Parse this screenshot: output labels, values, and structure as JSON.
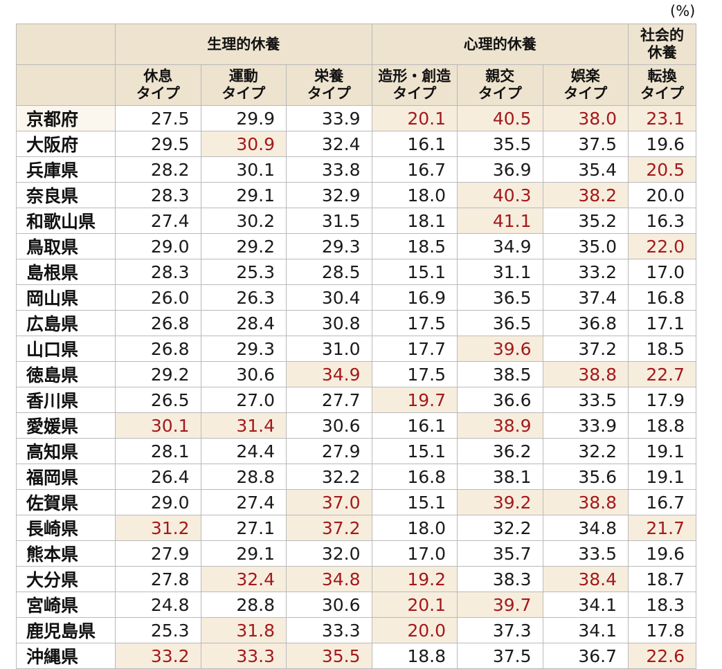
{
  "unit_label": "(%)",
  "colors": {
    "header_bg": "#ede3cf",
    "highlight_bg": "#f7eddd",
    "highlight_text": "#a3191c",
    "normal_text": "#1a1a1a"
  },
  "chart_data": {
    "type": "table",
    "groups": [
      {
        "label": "生理的休養",
        "span": 3
      },
      {
        "label": "心理的休養",
        "span": 3
      },
      {
        "label": "社会的\n休養",
        "span": 1
      }
    ],
    "columns": [
      "休息\nタイプ",
      "運動\nタイプ",
      "栄養\nタイプ",
      "造形・創造\nタイプ",
      "親交\nタイプ",
      "娯楽\nタイプ",
      "転換\nタイプ"
    ],
    "rows": [
      {
        "pref": "京都府",
        "values": [
          "27.5",
          "29.9",
          "33.9",
          "20.1",
          "40.5",
          "38.0",
          "23.1"
        ],
        "highlight": [
          false,
          false,
          false,
          true,
          true,
          true,
          true
        ]
      },
      {
        "pref": "大阪府",
        "values": [
          "29.5",
          "30.9",
          "32.4",
          "16.1",
          "35.5",
          "37.5",
          "19.6"
        ],
        "highlight": [
          false,
          true,
          false,
          false,
          false,
          false,
          false
        ]
      },
      {
        "pref": "兵庫県",
        "values": [
          "28.2",
          "30.1",
          "33.8",
          "16.7",
          "36.9",
          "35.4",
          "20.5"
        ],
        "highlight": [
          false,
          false,
          false,
          false,
          false,
          false,
          true
        ]
      },
      {
        "pref": "奈良県",
        "values": [
          "28.3",
          "29.1",
          "32.9",
          "18.0",
          "40.3",
          "38.2",
          "20.0"
        ],
        "highlight": [
          false,
          false,
          false,
          false,
          true,
          true,
          false
        ]
      },
      {
        "pref": "和歌山県",
        "values": [
          "27.4",
          "30.2",
          "31.5",
          "18.1",
          "41.1",
          "35.2",
          "16.3"
        ],
        "highlight": [
          false,
          false,
          false,
          false,
          true,
          false,
          false
        ]
      },
      {
        "pref": "鳥取県",
        "values": [
          "29.0",
          "29.2",
          "29.3",
          "18.5",
          "34.9",
          "35.0",
          "22.0"
        ],
        "highlight": [
          false,
          false,
          false,
          false,
          false,
          false,
          true
        ]
      },
      {
        "pref": "島根県",
        "values": [
          "28.3",
          "25.3",
          "28.5",
          "15.1",
          "31.1",
          "33.2",
          "17.0"
        ],
        "highlight": [
          false,
          false,
          false,
          false,
          false,
          false,
          false
        ]
      },
      {
        "pref": "岡山県",
        "values": [
          "26.0",
          "26.3",
          "30.4",
          "16.9",
          "36.5",
          "37.4",
          "16.8"
        ],
        "highlight": [
          false,
          false,
          false,
          false,
          false,
          false,
          false
        ]
      },
      {
        "pref": "広島県",
        "values": [
          "26.8",
          "28.4",
          "30.8",
          "17.5",
          "36.5",
          "36.8",
          "17.1"
        ],
        "highlight": [
          false,
          false,
          false,
          false,
          false,
          false,
          false
        ]
      },
      {
        "pref": "山口県",
        "values": [
          "26.8",
          "29.3",
          "31.0",
          "17.7",
          "39.6",
          "37.2",
          "18.5"
        ],
        "highlight": [
          false,
          false,
          false,
          false,
          true,
          false,
          false
        ]
      },
      {
        "pref": "徳島県",
        "values": [
          "29.2",
          "30.6",
          "34.9",
          "17.5",
          "38.5",
          "38.8",
          "22.7"
        ],
        "highlight": [
          false,
          false,
          true,
          false,
          false,
          true,
          true
        ]
      },
      {
        "pref": "香川県",
        "values": [
          "26.5",
          "27.0",
          "27.7",
          "19.7",
          "36.6",
          "33.5",
          "17.9"
        ],
        "highlight": [
          false,
          false,
          false,
          true,
          false,
          false,
          false
        ]
      },
      {
        "pref": "愛媛県",
        "values": [
          "30.1",
          "31.4",
          "30.6",
          "16.1",
          "38.9",
          "33.9",
          "18.8"
        ],
        "highlight": [
          true,
          true,
          false,
          false,
          true,
          false,
          false
        ]
      },
      {
        "pref": "高知県",
        "values": [
          "28.1",
          "24.4",
          "27.9",
          "15.1",
          "36.2",
          "32.2",
          "19.1"
        ],
        "highlight": [
          false,
          false,
          false,
          false,
          false,
          false,
          false
        ]
      },
      {
        "pref": "福岡県",
        "values": [
          "26.4",
          "28.8",
          "32.2",
          "16.8",
          "38.1",
          "35.6",
          "19.1"
        ],
        "highlight": [
          false,
          false,
          false,
          false,
          false,
          false,
          false
        ]
      },
      {
        "pref": "佐賀県",
        "values": [
          "29.0",
          "27.4",
          "37.0",
          "15.1",
          "39.2",
          "38.8",
          "16.7"
        ],
        "highlight": [
          false,
          false,
          true,
          false,
          true,
          true,
          false
        ]
      },
      {
        "pref": "長崎県",
        "values": [
          "31.2",
          "27.1",
          "37.2",
          "18.0",
          "32.2",
          "34.8",
          "21.7"
        ],
        "highlight": [
          true,
          false,
          true,
          false,
          false,
          false,
          true
        ]
      },
      {
        "pref": "熊本県",
        "values": [
          "27.9",
          "29.1",
          "32.0",
          "17.0",
          "35.7",
          "33.5",
          "19.6"
        ],
        "highlight": [
          false,
          false,
          false,
          false,
          false,
          false,
          false
        ]
      },
      {
        "pref": "大分県",
        "values": [
          "27.8",
          "32.4",
          "34.8",
          "19.2",
          "38.3",
          "38.4",
          "18.7"
        ],
        "highlight": [
          false,
          true,
          true,
          true,
          false,
          true,
          false
        ]
      },
      {
        "pref": "宮崎県",
        "values": [
          "24.8",
          "28.8",
          "30.6",
          "20.1",
          "39.7",
          "34.1",
          "18.3"
        ],
        "highlight": [
          false,
          false,
          false,
          true,
          true,
          false,
          false
        ]
      },
      {
        "pref": "鹿児島県",
        "values": [
          "25.3",
          "31.8",
          "33.3",
          "20.0",
          "37.3",
          "34.1",
          "17.8"
        ],
        "highlight": [
          false,
          true,
          false,
          true,
          false,
          false,
          false
        ]
      },
      {
        "pref": "沖縄県",
        "values": [
          "33.2",
          "33.3",
          "35.5",
          "18.8",
          "37.5",
          "36.7",
          "22.6"
        ],
        "highlight": [
          true,
          true,
          true,
          false,
          false,
          false,
          true
        ]
      }
    ]
  }
}
